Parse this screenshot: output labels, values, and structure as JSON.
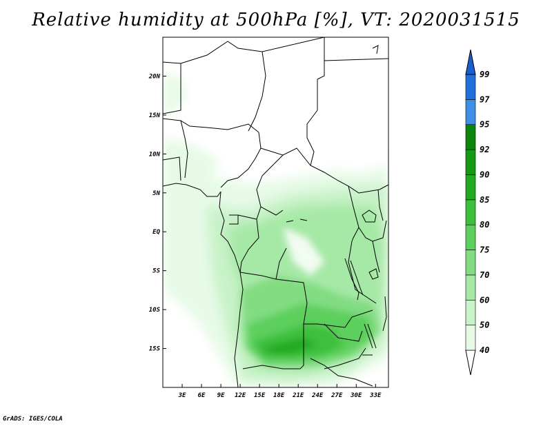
{
  "title": "Relative humidity at 500hPa [%], VT: 2020031515",
  "credit": "GrADS: IGES/COLA",
  "map": {
    "lon_range": [
      0,
      35
    ],
    "lat_range": [
      -20,
      25
    ],
    "lat_ticks": [
      {
        "value": 20,
        "label": "20N"
      },
      {
        "value": 15,
        "label": "15N"
      },
      {
        "value": 10,
        "label": "10N"
      },
      {
        "value": 5,
        "label": "5N"
      },
      {
        "value": 0,
        "label": "EQ"
      },
      {
        "value": -5,
        "label": "5S"
      },
      {
        "value": -10,
        "label": "10S"
      },
      {
        "value": -15,
        "label": "15S"
      }
    ],
    "lon_ticks": [
      {
        "value": 3,
        "label": "3E"
      },
      {
        "value": 6,
        "label": "6E"
      },
      {
        "value": 9,
        "label": "9E"
      },
      {
        "value": 12,
        "label": "12E"
      },
      {
        "value": 15,
        "label": "15E"
      },
      {
        "value": 18,
        "label": "18E"
      },
      {
        "value": 21,
        "label": "21E"
      },
      {
        "value": 24,
        "label": "24E"
      },
      {
        "value": 27,
        "label": "27E"
      },
      {
        "value": 30,
        "label": "30E"
      },
      {
        "value": 33,
        "label": "33E"
      }
    ]
  },
  "colorbar": {
    "levels": [
      {
        "label": "40",
        "color": "#ffffff"
      },
      {
        "label": "50",
        "color": "#e6fae6"
      },
      {
        "label": "60",
        "color": "#c8f2c8"
      },
      {
        "label": "70",
        "color": "#a6e8a6"
      },
      {
        "label": "75",
        "color": "#82dc82"
      },
      {
        "label": "80",
        "color": "#5ccf5c"
      },
      {
        "label": "85",
        "color": "#3cc03c"
      },
      {
        "label": "90",
        "color": "#22aa22"
      },
      {
        "label": "92",
        "color": "#159a15"
      },
      {
        "label": "95",
        "color": "#0b860b"
      },
      {
        "label": "97",
        "color": "#3d8fe8"
      },
      {
        "label": "99",
        "color": "#1f6fdc"
      }
    ],
    "top_color": "#1a5fd0"
  }
}
